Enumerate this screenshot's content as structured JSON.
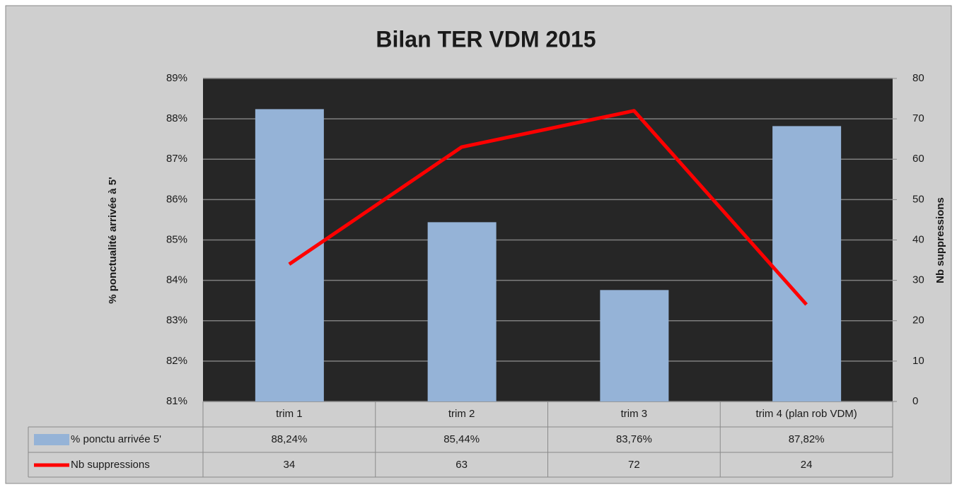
{
  "chart_data": {
    "type": "bar",
    "title": "Bilan TER VDM 2015",
    "ylabel": "% ponctualité arrivée à 5'",
    "y2label": "Nb suppressions",
    "categories": [
      "trim 1",
      "trim 2",
      "trim 3",
      "trim 4 (plan rob VDM)"
    ],
    "series": [
      {
        "name": "% ponctu arrivée 5'",
        "color": "#95b3d7",
        "values": [
          88.24,
          85.44,
          83.76,
          87.82
        ],
        "value_labels": [
          "88,24%",
          "85,44%",
          "83,76%",
          "87,82%"
        ]
      },
      {
        "name": "Nb suppressions",
        "color": "#ff0000",
        "type": "line",
        "axis": "y2",
        "values": [
          34,
          63,
          72,
          24
        ]
      }
    ],
    "ylim": [
      81,
      89
    ],
    "yticks": [
      {
        "value": 81,
        "label": "81%"
      },
      {
        "value": 82,
        "label": "82%"
      },
      {
        "value": 83,
        "label": "83%"
      },
      {
        "value": 84,
        "label": "84%"
      },
      {
        "value": 85,
        "label": "85%"
      },
      {
        "value": 86,
        "label": "86%"
      },
      {
        "value": 87,
        "label": "87%"
      },
      {
        "value": 88,
        "label": "88%"
      },
      {
        "value": 89,
        "label": "89%"
      }
    ],
    "y2lim": [
      0,
      80
    ],
    "y2ticks": [
      0,
      10,
      20,
      30,
      40,
      50,
      60,
      70,
      80
    ],
    "grid": true,
    "data_table": true
  }
}
